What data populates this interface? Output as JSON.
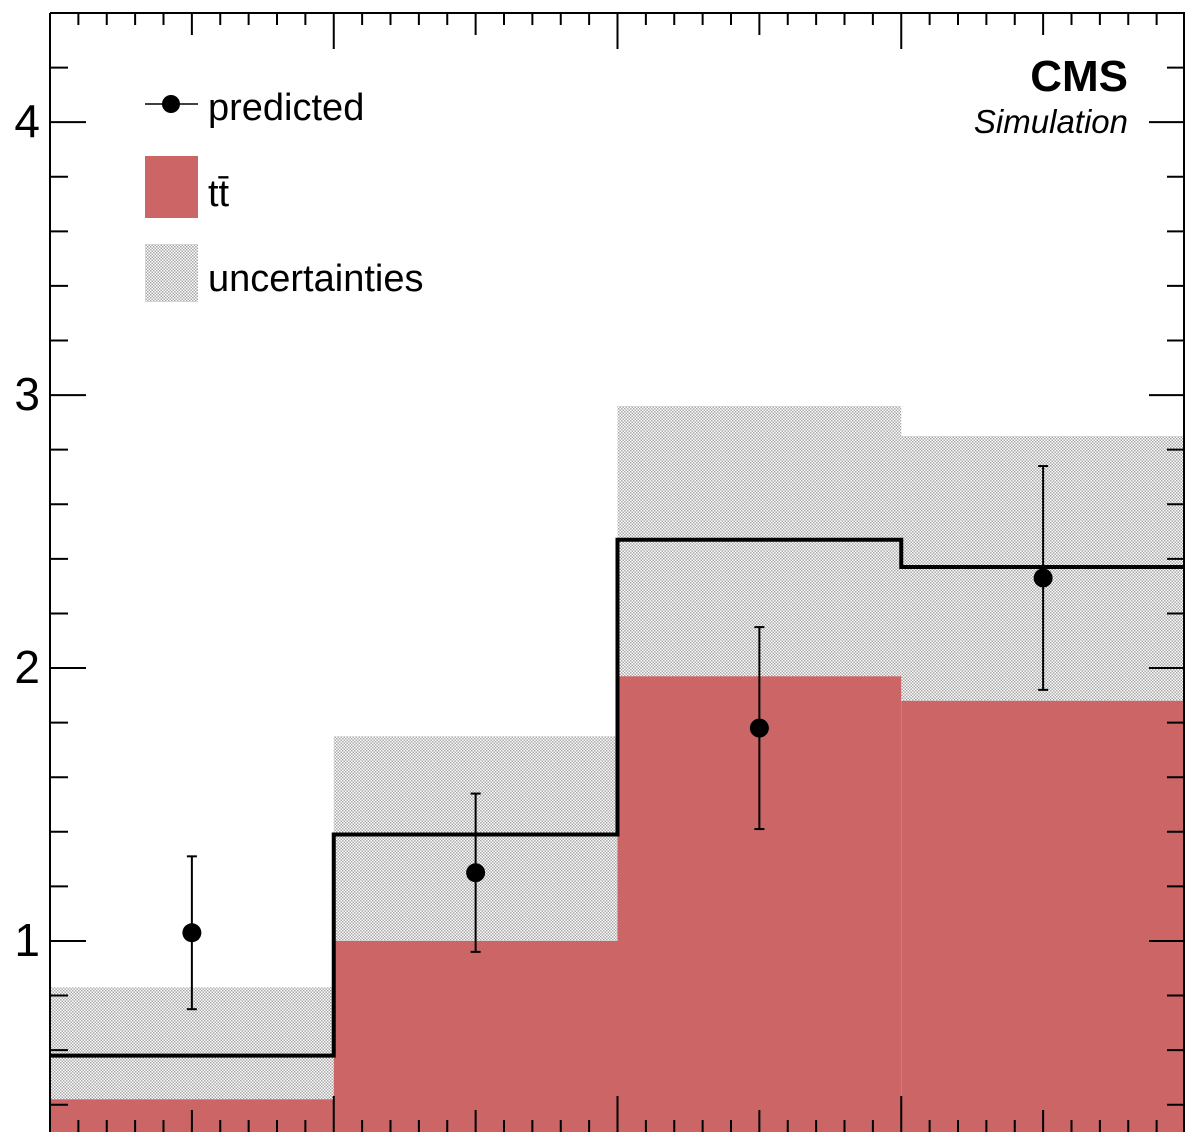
{
  "chart_data": {
    "type": "bar",
    "experiment_label": "CMS",
    "experiment_sublabel": "Simulation",
    "xlabel": "",
    "ylabel": "",
    "xlim": [
      0,
      4
    ],
    "ylim": [
      0.3,
      4.4
    ],
    "y_ticks": [
      1,
      2,
      3,
      4
    ],
    "y_tick_labels": [
      "1",
      "2",
      "3",
      "4"
    ],
    "x_bin_edges": [
      0,
      1,
      2,
      3,
      4
    ],
    "grid": false,
    "legend_position": "top-left",
    "legend": {
      "predicted": "predicted",
      "ttbar": "tt̄",
      "uncertainties": "uncertainties"
    },
    "colors": {
      "ttbar_fill": "#cc6666",
      "total_line": "#000000",
      "uncertainty_hatch": "#8a8a8a",
      "points": "#000000"
    },
    "series": [
      {
        "name": "tt̄",
        "kind": "filled-histogram",
        "values": [
          0.42,
          1.0,
          1.97,
          1.88
        ]
      },
      {
        "name": "uncertainties",
        "kind": "band",
        "low": [
          0.42,
          1.0,
          1.97,
          1.88
        ],
        "high": [
          0.83,
          1.75,
          2.96,
          2.85
        ]
      },
      {
        "name": "total",
        "kind": "step-line",
        "values": [
          0.58,
          1.39,
          2.47,
          2.37
        ]
      },
      {
        "name": "predicted",
        "kind": "points-with-errors",
        "x": [
          0.5,
          1.5,
          2.5,
          3.5
        ],
        "y": [
          1.03,
          1.25,
          1.78,
          2.33
        ],
        "err_low": [
          0.28,
          0.29,
          0.37,
          0.41
        ],
        "err_high": [
          0.28,
          0.29,
          0.37,
          0.41
        ]
      }
    ]
  }
}
